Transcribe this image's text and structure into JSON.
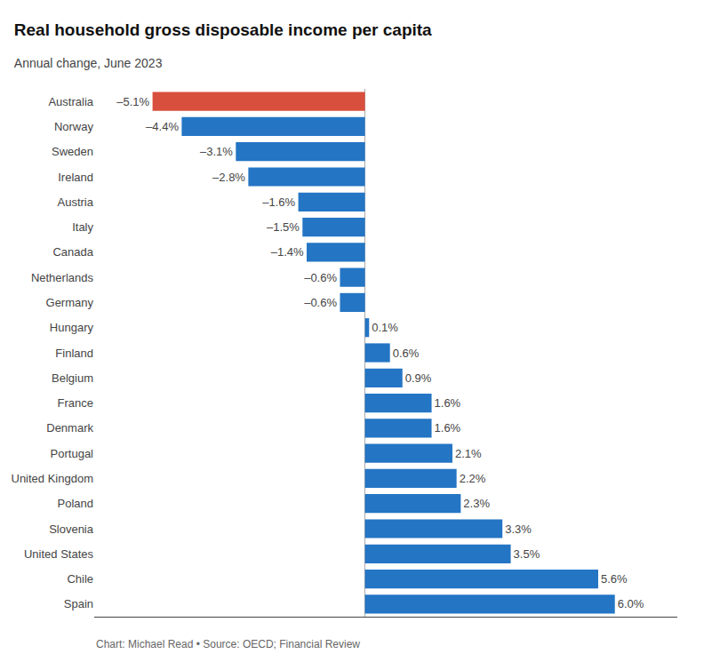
{
  "chart_data": {
    "type": "bar",
    "orientation": "horizontal",
    "title": "Real household gross disposable income per capita",
    "subtitle": "Annual change, June 2023",
    "annotations": [
      "Chart: Michael Read • Source: OECD; Financial Review"
    ],
    "categories": [
      "Australia",
      "Norway",
      "Sweden",
      "Ireland",
      "Austria",
      "Italy",
      "Canada",
      "Netherlands",
      "Germany",
      "Hungary",
      "Finland",
      "Belgium",
      "France",
      "Denmark",
      "Portugal",
      "United Kingdom",
      "Poland",
      "Slovenia",
      "United States",
      "Chile",
      "Spain"
    ],
    "values": [
      -5.1,
      -4.4,
      -3.1,
      -2.8,
      -1.6,
      -1.5,
      -1.4,
      -0.6,
      -0.6,
      0.1,
      0.6,
      0.9,
      1.6,
      1.6,
      2.1,
      2.2,
      2.3,
      3.3,
      3.5,
      5.6,
      6.0
    ],
    "value_labels": [
      "–5.1%",
      "–4.4%",
      "–3.1%",
      "–2.8%",
      "–1.6%",
      "–1.5%",
      "–1.4%",
      "–0.6%",
      "–0.6%",
      "0.1%",
      "0.6%",
      "0.9%",
      "1.6%",
      "1.6%",
      "2.1%",
      "2.2%",
      "2.3%",
      "3.3%",
      "3.5%",
      "5.6%",
      "6.0%"
    ],
    "colors": [
      "#d94f3d",
      "#2475c4",
      "#2475c4",
      "#2475c4",
      "#2475c4",
      "#2475c4",
      "#2475c4",
      "#2475c4",
      "#2475c4",
      "#2475c4",
      "#2475c4",
      "#2475c4",
      "#2475c4",
      "#2475c4",
      "#2475c4",
      "#2475c4",
      "#2475c4",
      "#2475c4",
      "#2475c4",
      "#2475c4",
      "#2475c4"
    ],
    "xlim": [
      -6.5,
      7.5
    ],
    "data_labels": true,
    "tick_labels": "y",
    "grid": false
  }
}
